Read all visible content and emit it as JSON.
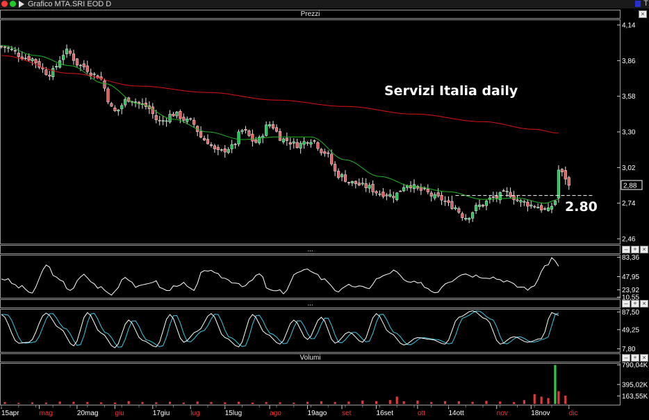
{
  "window": {
    "title": "Grafico MTA.SRI EOD D",
    "colors": {
      "green_dot": "#22cc22",
      "white_dot": "#ffffff"
    }
  },
  "panels": {
    "price": {
      "label": "Prezzi"
    },
    "osc1": {
      "label": "..."
    },
    "osc2": {
      "label": "..."
    },
    "volume": {
      "label": "Volumi"
    }
  },
  "header_buttons": {
    "minus": "–",
    "plus": "+"
  },
  "annotations": {
    "title": "Servizi Italia daily",
    "level_label": "2.80",
    "level_value": 2.8
  },
  "chart_data": [
    {
      "name": "price",
      "type": "candlestick",
      "title": "Servizi Italia daily",
      "ylim": [
        2.46,
        4.14
      ],
      "yticks": [
        "4,14",
        "3,86",
        "3,58",
        "3,30",
        "3,02",
        "2,74",
        "2,46"
      ],
      "ytick_values": [
        4.14,
        3.86,
        3.58,
        3.3,
        3.02,
        2.74,
        2.46
      ],
      "last_price_label": "2,88",
      "last_price": 2.88,
      "colors": {
        "up": "#22c055",
        "down": "#e06060",
        "ma_fast": "#22b822",
        "ma_slow": "#e01010",
        "grid": "#ffffff"
      },
      "close_anchors": [
        [
          0,
          3.97
        ],
        [
          8,
          3.88
        ],
        [
          14,
          3.76
        ],
        [
          19,
          3.93
        ],
        [
          23,
          3.82
        ],
        [
          28,
          3.74
        ],
        [
          33,
          3.46
        ],
        [
          37,
          3.56
        ],
        [
          42,
          3.5
        ],
        [
          46,
          3.38
        ],
        [
          50,
          3.44
        ],
        [
          55,
          3.38
        ],
        [
          59,
          3.24
        ],
        [
          63,
          3.14
        ],
        [
          67,
          3.18
        ],
        [
          70,
          3.31
        ],
        [
          74,
          3.22
        ],
        [
          78,
          3.36
        ],
        [
          82,
          3.24
        ],
        [
          86,
          3.2
        ],
        [
          90,
          3.24
        ],
        [
          94,
          3.14
        ],
        [
          98,
          2.96
        ],
        [
          102,
          2.9
        ],
        [
          106,
          2.87
        ],
        [
          110,
          2.82
        ],
        [
          114,
          2.8
        ],
        [
          118,
          2.89
        ],
        [
          122,
          2.84
        ],
        [
          127,
          2.78
        ],
        [
          131,
          2.72
        ],
        [
          135,
          2.63
        ],
        [
          139,
          2.72
        ],
        [
          143,
          2.78
        ],
        [
          147,
          2.82
        ],
        [
          151,
          2.75
        ],
        [
          155,
          2.72
        ],
        [
          159,
          2.68
        ],
        [
          161,
          2.76
        ],
        [
          162,
          3.0
        ],
        [
          164,
          2.94
        ],
        [
          165,
          2.88
        ]
      ],
      "ma_fast_anchors": [
        [
          0,
          3.98
        ],
        [
          10,
          3.9
        ],
        [
          20,
          3.82
        ],
        [
          30,
          3.68
        ],
        [
          40,
          3.52
        ],
        [
          50,
          3.4
        ],
        [
          60,
          3.3
        ],
        [
          70,
          3.24
        ],
        [
          80,
          3.26
        ],
        [
          90,
          3.26
        ],
        [
          100,
          3.08
        ],
        [
          110,
          2.95
        ],
        [
          120,
          2.87
        ],
        [
          130,
          2.83
        ],
        [
          140,
          2.77
        ],
        [
          150,
          2.78
        ],
        [
          158,
          2.74
        ],
        [
          162,
          2.77
        ]
      ],
      "ma_slow_anchors": [
        [
          0,
          3.9
        ],
        [
          20,
          3.76
        ],
        [
          40,
          3.66
        ],
        [
          60,
          3.61
        ],
        [
          80,
          3.55
        ],
        [
          100,
          3.5
        ],
        [
          120,
          3.44
        ],
        [
          140,
          3.38
        ],
        [
          155,
          3.32
        ],
        [
          162,
          3.29
        ]
      ],
      "reference_line": {
        "value": 2.8,
        "x_from": 132,
        "x_to": 172,
        "style": "dashed"
      }
    },
    {
      "name": "oscillator_1",
      "type": "line",
      "ylim": [
        10.55,
        85.35
      ],
      "yticks": [
        "83,36",
        "47,95",
        "23,92",
        "10,55"
      ],
      "ytick_values": [
        83.36,
        47.95,
        23.92,
        10.55
      ],
      "line_color": "#ffffff",
      "anchors": [
        [
          0,
          45
        ],
        [
          6,
          28
        ],
        [
          9,
          18
        ],
        [
          13,
          68
        ],
        [
          17,
          40
        ],
        [
          20,
          25
        ],
        [
          24,
          50
        ],
        [
          28,
          30
        ],
        [
          32,
          16
        ],
        [
          36,
          48
        ],
        [
          40,
          28
        ],
        [
          44,
          40
        ],
        [
          48,
          22
        ],
        [
          52,
          36
        ],
        [
          56,
          22
        ],
        [
          59,
          62
        ],
        [
          63,
          50
        ],
        [
          67,
          40
        ],
        [
          71,
          32
        ],
        [
          75,
          52
        ],
        [
          78,
          22
        ],
        [
          82,
          20
        ],
        [
          86,
          55
        ],
        [
          90,
          60
        ],
        [
          94,
          42
        ],
        [
          98,
          22
        ],
        [
          102,
          32
        ],
        [
          106,
          26
        ],
        [
          110,
          46
        ],
        [
          114,
          58
        ],
        [
          118,
          38
        ],
        [
          122,
          34
        ],
        [
          126,
          20
        ],
        [
          130,
          40
        ],
        [
          134,
          54
        ],
        [
          138,
          50
        ],
        [
          142,
          48
        ],
        [
          146,
          42
        ],
        [
          150,
          30
        ],
        [
          154,
          26
        ],
        [
          158,
          64
        ],
        [
          160,
          82
        ],
        [
          162,
          70
        ]
      ]
    },
    {
      "name": "oscillator_2",
      "type": "line",
      "ylim": [
        2.5,
        91.0
      ],
      "yticks": [
        "87,50",
        "49,25",
        "7,80"
      ],
      "ytick_values": [
        87.5,
        49.25,
        7.8
      ],
      "series_colors": [
        "#ffffff",
        "#40c8e8"
      ],
      "anchors": [
        [
          0,
          82
        ],
        [
          5,
          20
        ],
        [
          8,
          22
        ],
        [
          13,
          85
        ],
        [
          17,
          52
        ],
        [
          21,
          14
        ],
        [
          25,
          86
        ],
        [
          29,
          42
        ],
        [
          33,
          10
        ],
        [
          37,
          70
        ],
        [
          41,
          26
        ],
        [
          45,
          12
        ],
        [
          49,
          82
        ],
        [
          53,
          22
        ],
        [
          57,
          46
        ],
        [
          61,
          84
        ],
        [
          65,
          32
        ],
        [
          69,
          12
        ],
        [
          73,
          82
        ],
        [
          77,
          40
        ],
        [
          81,
          18
        ],
        [
          85,
          70
        ],
        [
          89,
          28
        ],
        [
          93,
          76
        ],
        [
          97,
          20
        ],
        [
          101,
          44
        ],
        [
          105,
          22
        ],
        [
          109,
          84
        ],
        [
          113,
          42
        ],
        [
          117,
          16
        ],
        [
          121,
          32
        ],
        [
          125,
          28
        ],
        [
          129,
          18
        ],
        [
          133,
          76
        ],
        [
          137,
          90
        ],
        [
          141,
          72
        ],
        [
          145,
          18
        ],
        [
          149,
          34
        ],
        [
          153,
          22
        ],
        [
          157,
          30
        ],
        [
          160,
          86
        ],
        [
          162,
          80
        ]
      ]
    },
    {
      "name": "volume",
      "type": "bar",
      "title": "Volumi",
      "ylim": [
        0,
        800
      ],
      "yticks": [
        "790,04K",
        "395,02K",
        "163,55K"
      ],
      "ytick_values": [
        790.04,
        395.02,
        163.55
      ],
      "bar_color": "#dd3b3b",
      "peak_color": "#2ecc40",
      "bars": [
        [
          1,
          40
        ],
        [
          5,
          25
        ],
        [
          9,
          35
        ],
        [
          13,
          30
        ],
        [
          17,
          50
        ],
        [
          21,
          45
        ],
        [
          25,
          40
        ],
        [
          29,
          35
        ],
        [
          33,
          30
        ],
        [
          37,
          60
        ],
        [
          41,
          40
        ],
        [
          45,
          35
        ],
        [
          49,
          45
        ],
        [
          53,
          30
        ],
        [
          57,
          50
        ],
        [
          61,
          40
        ],
        [
          65,
          35
        ],
        [
          69,
          45
        ],
        [
          73,
          30
        ],
        [
          77,
          40
        ],
        [
          81,
          35
        ],
        [
          85,
          30
        ],
        [
          89,
          45
        ],
        [
          93,
          55
        ],
        [
          97,
          40
        ],
        [
          101,
          50
        ],
        [
          105,
          70
        ],
        [
          109,
          60
        ],
        [
          113,
          80
        ],
        [
          115,
          150
        ],
        [
          117,
          55
        ],
        [
          121,
          70
        ],
        [
          125,
          40
        ],
        [
          129,
          60
        ],
        [
          133,
          55
        ],
        [
          137,
          45
        ],
        [
          141,
          65
        ],
        [
          145,
          50
        ],
        [
          149,
          40
        ],
        [
          152,
          80
        ],
        [
          155,
          200
        ],
        [
          157,
          150
        ],
        [
          159,
          120
        ],
        [
          161,
          790
        ],
        [
          162,
          260
        ],
        [
          164,
          170
        ]
      ]
    }
  ],
  "x_axis": {
    "n_sessions": 166,
    "labels": [
      {
        "text": "15apr",
        "i": 0,
        "color": "#ffffff"
      },
      {
        "text": "mag",
        "i": 11,
        "color": "#ff3030"
      },
      {
        "text": "20mag",
        "i": 22,
        "color": "#ffffff"
      },
      {
        "text": "giu",
        "i": 33,
        "color": "#ff3030"
      },
      {
        "text": "17giu",
        "i": 44,
        "color": "#ffffff"
      },
      {
        "text": "lug",
        "i": 55,
        "color": "#ff3030"
      },
      {
        "text": "15lug",
        "i": 65,
        "color": "#ffffff"
      },
      {
        "text": "ago",
        "i": 78,
        "color": "#ff3030"
      },
      {
        "text": "19ago",
        "i": 89,
        "color": "#ffffff"
      },
      {
        "text": "set",
        "i": 99,
        "color": "#ff3030"
      },
      {
        "text": "16set",
        "i": 109,
        "color": "#ffffff"
      },
      {
        "text": "ott",
        "i": 121,
        "color": "#ff3030"
      },
      {
        "text": "14ott",
        "i": 130,
        "color": "#ffffff"
      },
      {
        "text": "nov",
        "i": 144,
        "color": "#ff3030"
      },
      {
        "text": "18nov",
        "i": 154,
        "color": "#ffffff"
      },
      {
        "text": "dic",
        "i": 165,
        "color": "#ff3030"
      }
    ]
  }
}
